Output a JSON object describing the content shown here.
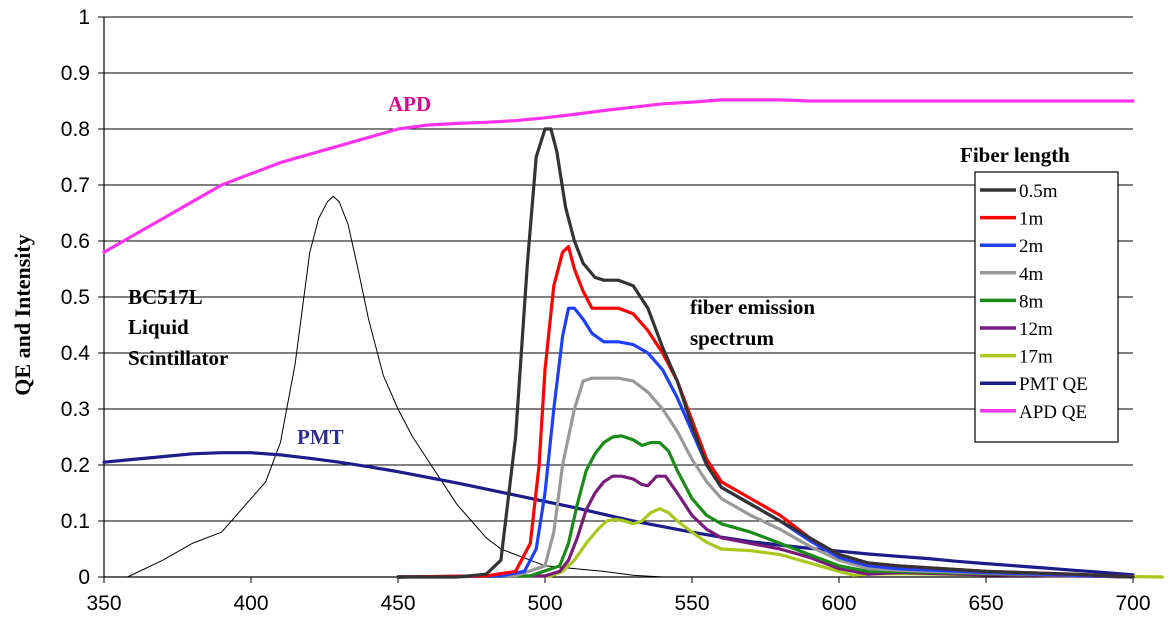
{
  "chart_data": {
    "type": "line",
    "ylabel": "QE and Intensity",
    "xlabel": "",
    "xlim": [
      350,
      700
    ],
    "ylim": [
      0,
      1
    ],
    "x_ticks": [
      "350",
      "400",
      "450",
      "500",
      "550",
      "600",
      "650",
      "700"
    ],
    "y_ticks": [
      "0",
      "0.1",
      "0.2",
      "0.3",
      "0.4",
      "0.5",
      "0.6",
      "0.7",
      "0.8",
      "0.9",
      "1"
    ],
    "grid": "horizontal",
    "legend": {
      "title": "Fiber length",
      "placement": "right"
    },
    "annotations": [
      {
        "text": "APD",
        "color": "#d6008f"
      },
      {
        "text": "PMT",
        "color": "#2e2e8f"
      },
      {
        "text": "BC517L",
        "color": "#000000"
      },
      {
        "text": "Liquid",
        "color": "#000000"
      },
      {
        "text": "Scintillator",
        "color": "#000000"
      },
      {
        "text": "fiber emission",
        "color": "#000000"
      },
      {
        "text": "spectrum",
        "color": "#000000"
      }
    ],
    "unlabeled_series": [
      {
        "color": "#000000",
        "x": [
          358,
          370,
          380,
          390,
          400,
          405,
          410,
          415,
          418,
          420,
          423,
          426,
          428,
          430,
          433,
          436,
          440,
          445,
          450,
          455,
          460,
          465,
          470,
          475,
          480,
          485,
          490,
          495,
          500,
          510,
          520,
          530,
          540
        ],
        "y": [
          0,
          0.03,
          0.06,
          0.08,
          0.14,
          0.17,
          0.24,
          0.38,
          0.5,
          0.58,
          0.64,
          0.67,
          0.68,
          0.67,
          0.63,
          0.56,
          0.46,
          0.36,
          0.3,
          0.25,
          0.21,
          0.17,
          0.13,
          0.1,
          0.07,
          0.05,
          0.04,
          0.03,
          0.02,
          0.015,
          0.01,
          0.003,
          0
        ]
      }
    ],
    "series": [
      {
        "name": "0.5m",
        "color": "#333333",
        "x": [
          450,
          470,
          480,
          485,
          490,
          494,
          497,
          500,
          502,
          504,
          507,
          510,
          513,
          517,
          520,
          525,
          530,
          535,
          540,
          545,
          550,
          555,
          560,
          570,
          580,
          590,
          600,
          610,
          620,
          650,
          680,
          700
        ],
        "y": [
          0,
          0,
          0.005,
          0.03,
          0.25,
          0.56,
          0.75,
          0.8,
          0.8,
          0.76,
          0.66,
          0.6,
          0.56,
          0.535,
          0.53,
          0.53,
          0.52,
          0.48,
          0.41,
          0.35,
          0.27,
          0.2,
          0.16,
          0.13,
          0.1,
          0.07,
          0.04,
          0.025,
          0.02,
          0.01,
          0.005,
          0
        ]
      },
      {
        "name": "1m",
        "color": "#ff0000",
        "x": [
          450,
          480,
          490,
          495,
          498,
          500,
          503,
          506,
          508,
          510,
          513,
          516,
          520,
          525,
          530,
          535,
          540,
          545,
          550,
          555,
          560,
          570,
          580,
          590,
          600,
          610,
          620,
          650,
          680,
          700
        ],
        "y": [
          0,
          0.002,
          0.01,
          0.06,
          0.2,
          0.37,
          0.52,
          0.58,
          0.59,
          0.55,
          0.51,
          0.48,
          0.48,
          0.48,
          0.47,
          0.44,
          0.4,
          0.35,
          0.28,
          0.21,
          0.17,
          0.14,
          0.11,
          0.07,
          0.04,
          0.025,
          0.02,
          0.01,
          0.005,
          0
        ]
      },
      {
        "name": "2m",
        "color": "#1f3fff",
        "x": [
          450,
          485,
          493,
          497,
          500,
          503,
          506,
          508,
          510,
          513,
          516,
          520,
          525,
          530,
          535,
          540,
          545,
          550,
          555,
          560,
          570,
          580,
          590,
          600,
          610,
          620,
          650,
          680,
          700
        ],
        "y": [
          0,
          0.002,
          0.01,
          0.05,
          0.15,
          0.3,
          0.43,
          0.48,
          0.48,
          0.46,
          0.435,
          0.42,
          0.42,
          0.415,
          0.4,
          0.37,
          0.32,
          0.26,
          0.2,
          0.16,
          0.13,
          0.1,
          0.065,
          0.035,
          0.02,
          0.015,
          0.008,
          0.003,
          0
        ]
      },
      {
        "name": "4m",
        "color": "#999999",
        "x": [
          450,
          490,
          500,
          503,
          506,
          510,
          513,
          516,
          520,
          525,
          530,
          535,
          540,
          545,
          550,
          555,
          560,
          570,
          580,
          590,
          600,
          610,
          620,
          650,
          680,
          700
        ],
        "y": [
          0,
          0.002,
          0.02,
          0.08,
          0.2,
          0.3,
          0.35,
          0.355,
          0.355,
          0.355,
          0.35,
          0.33,
          0.3,
          0.26,
          0.21,
          0.17,
          0.14,
          0.11,
          0.085,
          0.055,
          0.03,
          0.015,
          0.012,
          0.007,
          0.003,
          0
        ]
      },
      {
        "name": "8m",
        "color": "#1a8a1a",
        "x": [
          450,
          495,
          505,
          508,
          511,
          514,
          517,
          520,
          523,
          526,
          530,
          533,
          536,
          539,
          542,
          545,
          550,
          555,
          560,
          570,
          580,
          590,
          600,
          610,
          620,
          650,
          680,
          700
        ],
        "y": [
          0,
          0.002,
          0.02,
          0.06,
          0.13,
          0.19,
          0.22,
          0.24,
          0.25,
          0.252,
          0.245,
          0.235,
          0.24,
          0.24,
          0.225,
          0.19,
          0.14,
          0.11,
          0.095,
          0.08,
          0.06,
          0.04,
          0.02,
          0.01,
          0.01,
          0.006,
          0.003,
          0
        ]
      },
      {
        "name": "12m",
        "color": "#7a1a7a",
        "x": [
          450,
          500,
          505,
          508,
          511,
          514,
          517,
          520,
          523,
          526,
          530,
          533,
          535,
          538,
          541,
          545,
          550,
          555,
          560,
          570,
          580,
          590,
          600,
          610,
          620,
          650,
          680,
          700
        ],
        "y": [
          0,
          0.002,
          0.01,
          0.03,
          0.07,
          0.12,
          0.15,
          0.17,
          0.18,
          0.18,
          0.175,
          0.165,
          0.163,
          0.18,
          0.18,
          0.15,
          0.11,
          0.085,
          0.07,
          0.06,
          0.05,
          0.035,
          0.015,
          0.005,
          0.008,
          0.004,
          0.002,
          0
        ]
      },
      {
        "name": "17m",
        "color": "#a8c81e",
        "x": [
          450,
          502,
          506,
          510,
          514,
          518,
          521,
          524,
          527,
          530,
          533,
          536,
          539,
          542,
          545,
          550,
          555,
          560,
          570,
          580,
          590,
          600,
          605,
          610,
          620,
          650,
          680,
          710
        ],
        "y": [
          0,
          0.002,
          0.01,
          0.03,
          0.06,
          0.085,
          0.1,
          0.103,
          0.1,
          0.095,
          0.1,
          0.115,
          0.122,
          0.115,
          0.1,
          0.08,
          0.062,
          0.05,
          0.047,
          0.04,
          0.025,
          0.01,
          0.003,
          0.005,
          0.006,
          0.004,
          0.002,
          0
        ]
      },
      {
        "name": "PMT QE",
        "color": "#1c1c8a",
        "x": [
          350,
          360,
          370,
          380,
          390,
          400,
          410,
          420,
          430,
          440,
          450,
          460,
          470,
          480,
          490,
          500,
          510,
          520,
          530,
          540,
          550,
          560,
          570,
          580,
          590,
          600,
          610,
          620,
          630,
          640,
          650,
          660,
          670,
          680,
          690,
          700
        ],
        "y": [
          0.205,
          0.21,
          0.215,
          0.22,
          0.222,
          0.222,
          0.218,
          0.212,
          0.205,
          0.197,
          0.188,
          0.178,
          0.168,
          0.157,
          0.146,
          0.135,
          0.124,
          0.112,
          0.1,
          0.09,
          0.08,
          0.071,
          0.063,
          0.057,
          0.051,
          0.046,
          0.041,
          0.037,
          0.033,
          0.028,
          0.024,
          0.02,
          0.016,
          0.012,
          0.008,
          0.004
        ]
      },
      {
        "name": "APD QE",
        "color": "#ff33ee",
        "x": [
          350,
          360,
          370,
          380,
          390,
          400,
          410,
          420,
          430,
          440,
          450,
          460,
          470,
          480,
          490,
          500,
          510,
          520,
          530,
          540,
          550,
          560,
          570,
          580,
          590,
          600,
          620,
          650,
          700
        ],
        "y": [
          0.58,
          0.61,
          0.64,
          0.67,
          0.7,
          0.72,
          0.74,
          0.755,
          0.77,
          0.785,
          0.8,
          0.807,
          0.81,
          0.812,
          0.815,
          0.82,
          0.826,
          0.833,
          0.839,
          0.845,
          0.848,
          0.852,
          0.852,
          0.852,
          0.85,
          0.85,
          0.85,
          0.85,
          0.85
        ]
      }
    ]
  }
}
